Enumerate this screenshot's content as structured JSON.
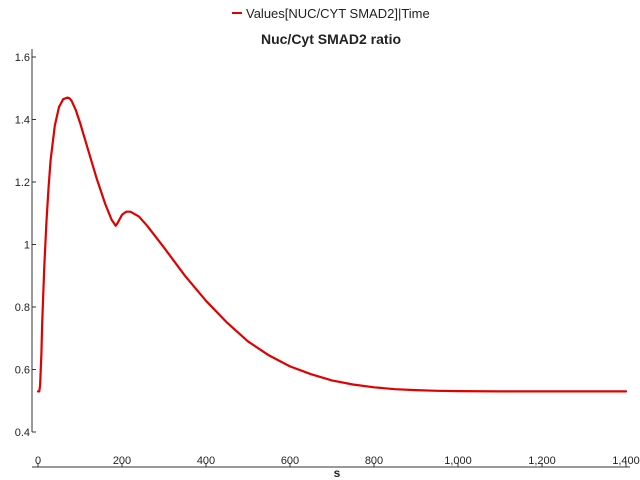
{
  "chart_data": {
    "type": "line",
    "title": "Nuc/Cyt SMAD2 ratio",
    "xlabel": "s",
    "ylabel": "",
    "xlim": [
      0,
      1400
    ],
    "ylim": [
      0.4,
      1.6
    ],
    "x_ticks": [
      0,
      200,
      400,
      600,
      800,
      1000,
      1200,
      1400
    ],
    "x_tick_labels": [
      "0",
      "200",
      "400",
      "600",
      "800",
      "1,000",
      "1,200",
      "1,400"
    ],
    "y_ticks": [
      0.4,
      0.6,
      0.8,
      1.0,
      1.2,
      1.4,
      1.6
    ],
    "y_tick_labels": [
      "0.4",
      "0.6",
      "0.8",
      "1",
      "1.2",
      "1.4",
      "1.6"
    ],
    "grid": false,
    "legend_position": "top-center",
    "series": [
      {
        "name": "Values[NUC/CYT SMAD2]|Time",
        "color": "#e00000",
        "x": [
          0,
          3,
          5,
          8,
          10,
          15,
          20,
          25,
          30,
          40,
          50,
          60,
          70,
          75,
          80,
          90,
          100,
          120,
          140,
          160,
          175,
          185,
          190,
          200,
          210,
          220,
          240,
          260,
          300,
          350,
          400,
          450,
          500,
          550,
          600,
          650,
          700,
          750,
          800,
          850,
          900,
          950,
          1000,
          1100,
          1200,
          1300,
          1400
        ],
        "y": [
          0.53,
          0.53,
          0.55,
          0.65,
          0.75,
          0.93,
          1.07,
          1.18,
          1.27,
          1.38,
          1.44,
          1.465,
          1.47,
          1.468,
          1.46,
          1.43,
          1.39,
          1.3,
          1.21,
          1.13,
          1.08,
          1.06,
          1.07,
          1.095,
          1.105,
          1.105,
          1.09,
          1.06,
          0.99,
          0.9,
          0.82,
          0.75,
          0.69,
          0.645,
          0.61,
          0.585,
          0.565,
          0.552,
          0.543,
          0.537,
          0.534,
          0.532,
          0.531,
          0.53,
          0.53,
          0.53,
          0.53
        ]
      }
    ]
  }
}
